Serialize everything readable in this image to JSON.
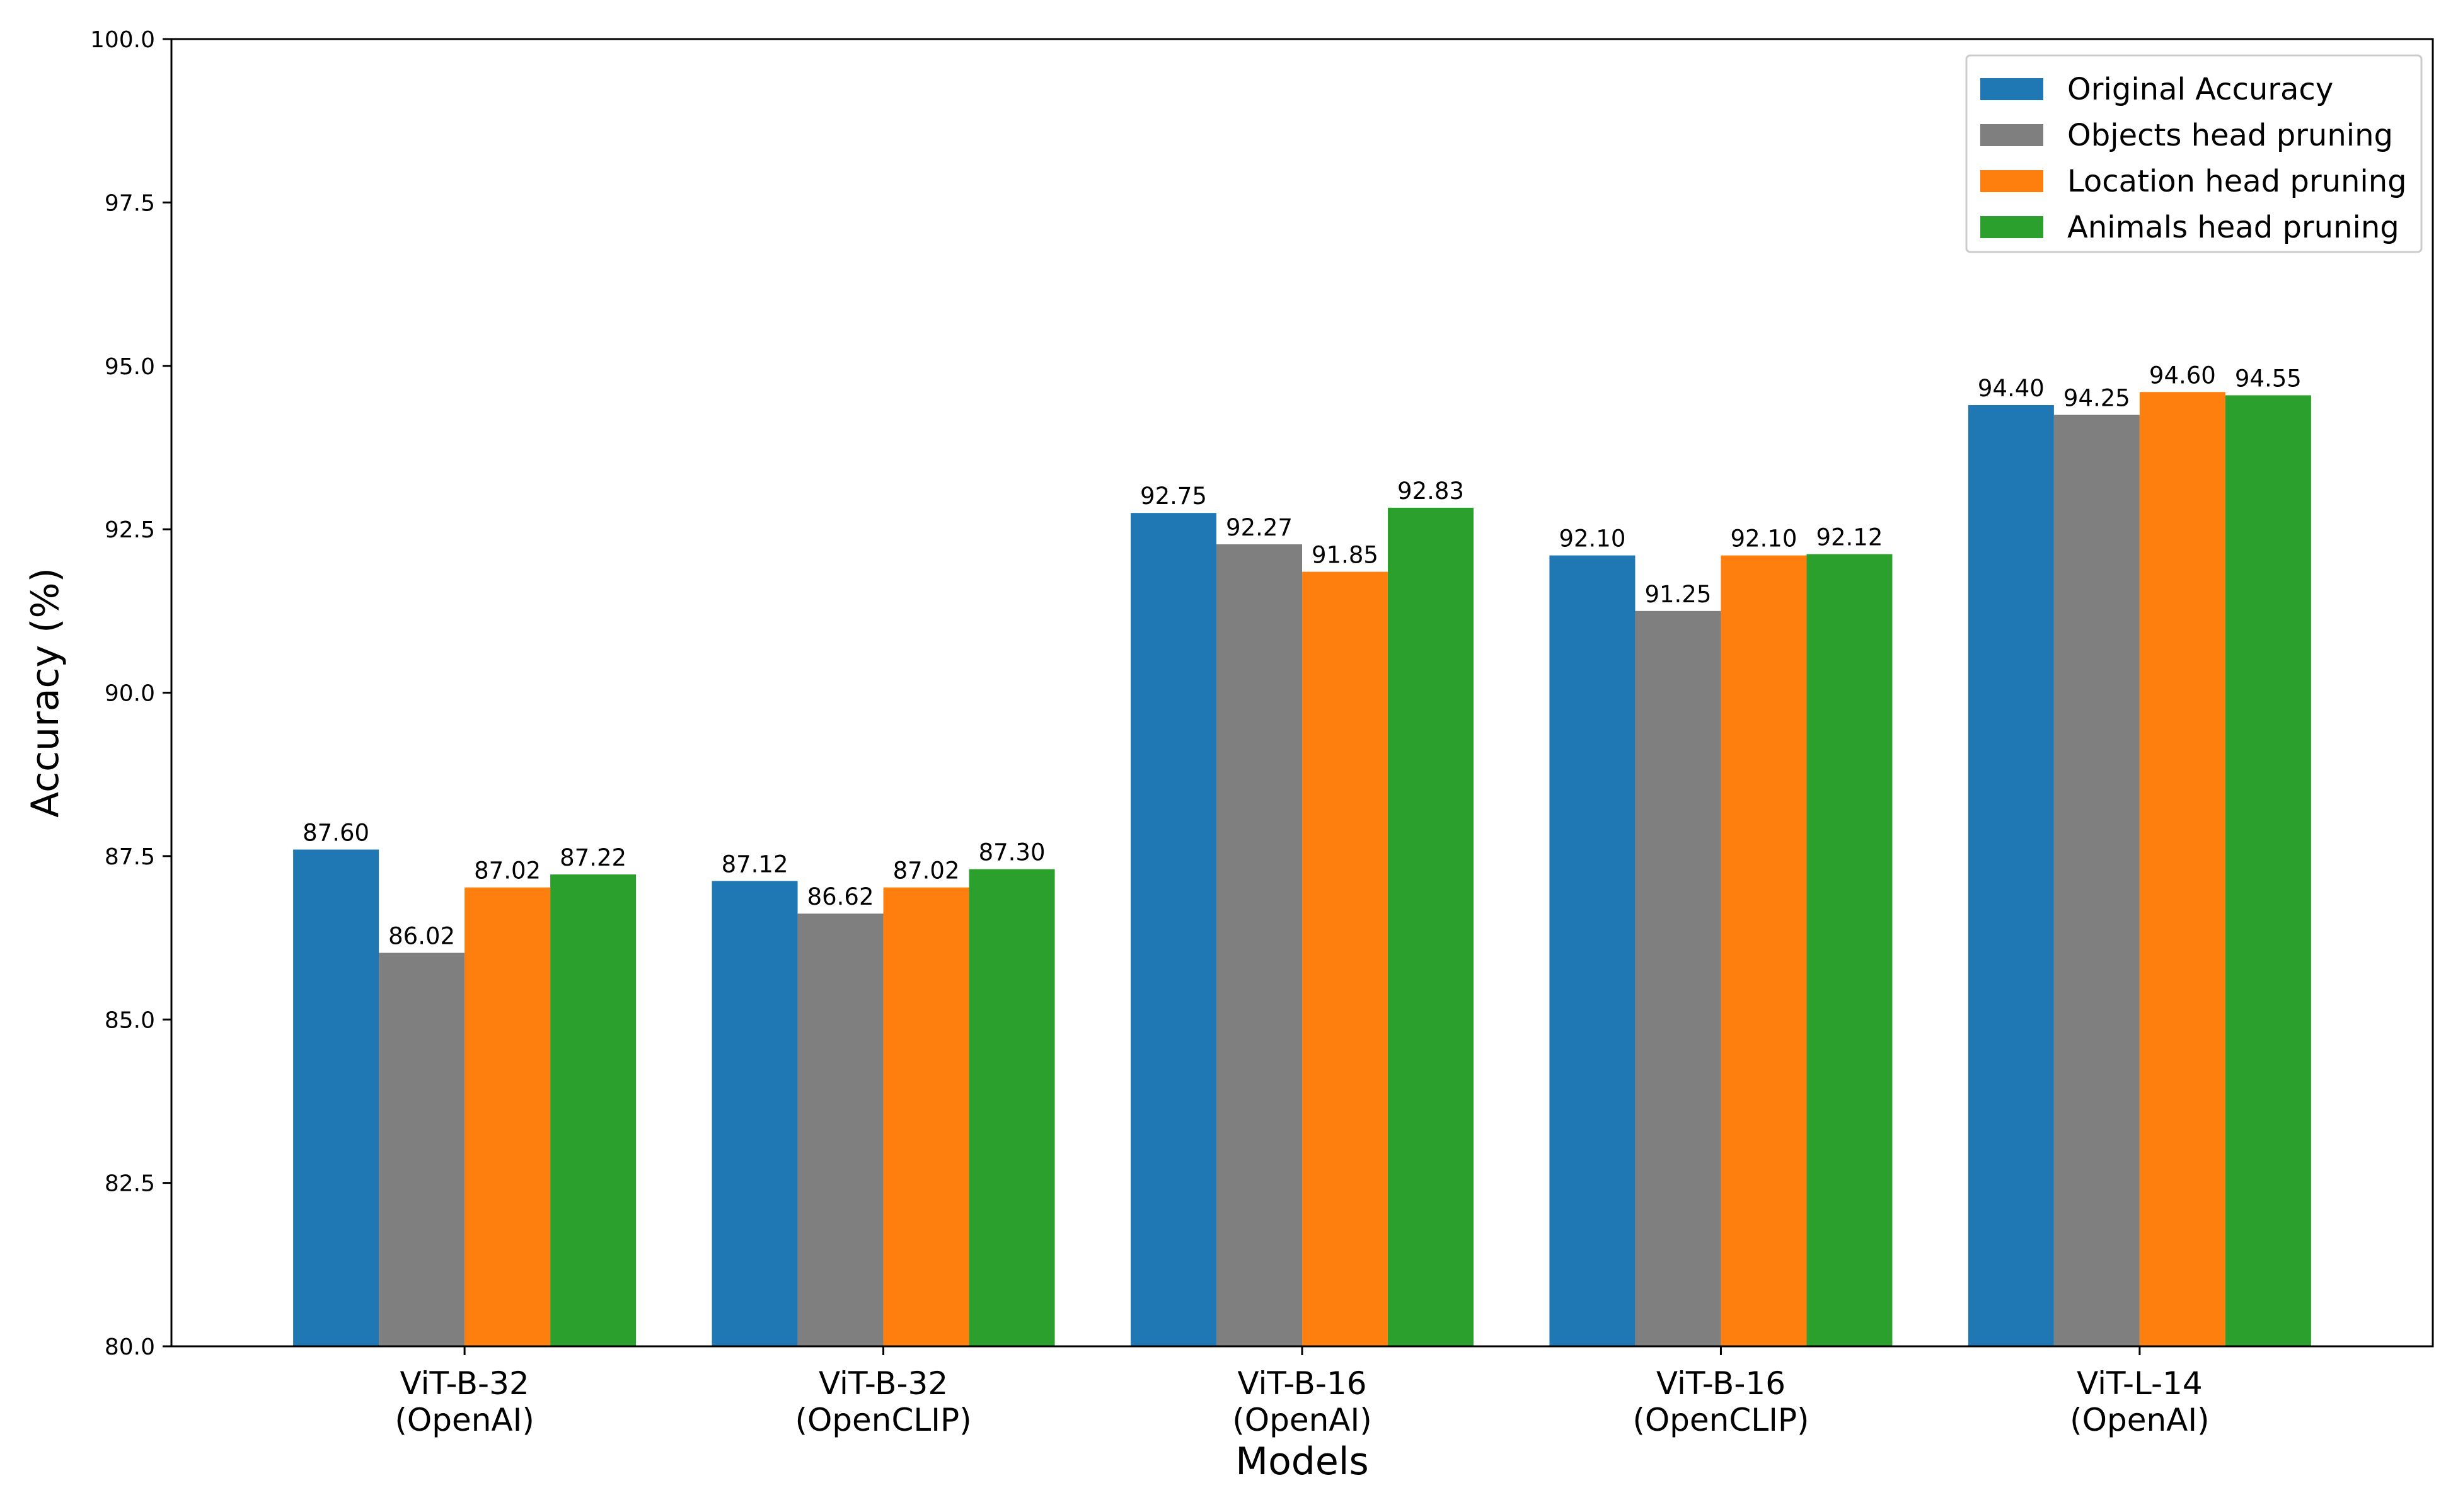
{
  "chart_data": {
    "type": "bar",
    "xlabel": "Models",
    "ylabel": "Accuracy (%)",
    "ylim": [
      80.0,
      100.0
    ],
    "yticks": [
      "80.0",
      "82.5",
      "85.0",
      "87.5",
      "90.0",
      "92.5",
      "95.0",
      "97.5",
      "100.0"
    ],
    "categories": [
      [
        "ViT-B-32",
        "(OpenAI)"
      ],
      [
        "ViT-B-32",
        "(OpenCLIP)"
      ],
      [
        "ViT-B-16",
        "(OpenAI)"
      ],
      [
        "ViT-B-16",
        "(OpenCLIP)"
      ],
      [
        "ViT-L-14",
        "(OpenAI)"
      ]
    ],
    "series": [
      {
        "name": "Original Accuracy",
        "color": "#1f77b4",
        "values": [
          87.6,
          87.12,
          92.75,
          92.1,
          94.4
        ]
      },
      {
        "name": "Objects head pruning",
        "color": "#7f7f7f",
        "values": [
          86.02,
          86.62,
          92.27,
          91.25,
          94.25
        ]
      },
      {
        "name": "Location head pruning",
        "color": "#ff7f0e",
        "values": [
          87.02,
          87.02,
          91.85,
          92.1,
          94.6
        ]
      },
      {
        "name": "Animals head pruning",
        "color": "#2ca02c",
        "values": [
          87.22,
          87.3,
          92.83,
          92.12,
          94.55
        ]
      }
    ],
    "value_format": 2,
    "grid": false,
    "legend_position": "top-right"
  }
}
